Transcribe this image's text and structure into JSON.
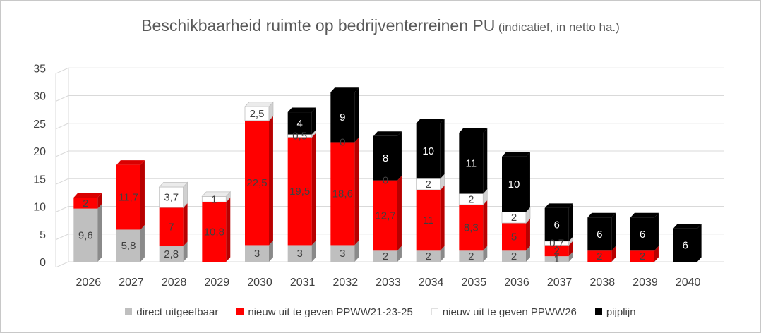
{
  "chart_data": {
    "type": "bar",
    "stacked": true,
    "three_d": true,
    "title": "Beschikbaarheid ruimte op bedrijventerreinen PU",
    "subtitle": "(indicatief, in netto ha.)",
    "categories": [
      "2026",
      "2027",
      "2028",
      "2029",
      "2030",
      "2031",
      "2032",
      "2033",
      "2034",
      "2035",
      "2036",
      "2037",
      "2038",
      "2039",
      "2040"
    ],
    "ylim": [
      0,
      35
    ],
    "yticks": [
      0,
      5,
      10,
      15,
      20,
      25,
      30,
      35
    ],
    "grid": true,
    "legend_position": "bottom",
    "series": [
      {
        "name": "direct uitgeefbaar",
        "color": "#bfbfbf",
        "values": [
          9.6,
          5.8,
          2.8,
          0,
          3,
          3,
          3,
          2,
          2,
          2,
          2,
          1,
          0,
          0,
          0
        ],
        "labels": [
          "9,6",
          "5,8",
          "2,8",
          "",
          "3",
          "3",
          "3",
          "2",
          "2",
          "2",
          "2",
          "1",
          "",
          "",
          ""
        ]
      },
      {
        "name": "nieuw uit te geven PPWW21-23-25",
        "color": "#ff0000",
        "values": [
          2,
          11.7,
          7,
          10.8,
          22.5,
          19.5,
          18.6,
          12.7,
          11,
          8.3,
          5,
          2,
          2,
          2,
          0
        ],
        "labels": [
          "2",
          "11,7",
          "7",
          "10,8",
          "22,5",
          "19,5",
          "18,6",
          "12,7",
          "11",
          "8,3",
          "5",
          "2",
          "2",
          "2",
          ""
        ]
      },
      {
        "name": "nieuw uit te geven PPWW26",
        "color": "#ffffff",
        "values": [
          0,
          0,
          3.7,
          1,
          2.5,
          0.5,
          0,
          0,
          2,
          2,
          2,
          0.7,
          0,
          0,
          0
        ],
        "labels": [
          "",
          "",
          "3,7",
          "1",
          "2,5",
          "0,5",
          "0",
          "0",
          "2",
          "2",
          "2",
          "0,7",
          "",
          "",
          ""
        ]
      },
      {
        "name": "pijplijn",
        "color": "#000000",
        "values": [
          0,
          0,
          0,
          0,
          0,
          4,
          9,
          8,
          10,
          11,
          10,
          6,
          6,
          6,
          6
        ],
        "labels": [
          "",
          "",
          "",
          "",
          "",
          "4",
          "9",
          "8",
          "10",
          "11",
          "10",
          "6",
          "6",
          "6",
          "6"
        ]
      }
    ]
  }
}
